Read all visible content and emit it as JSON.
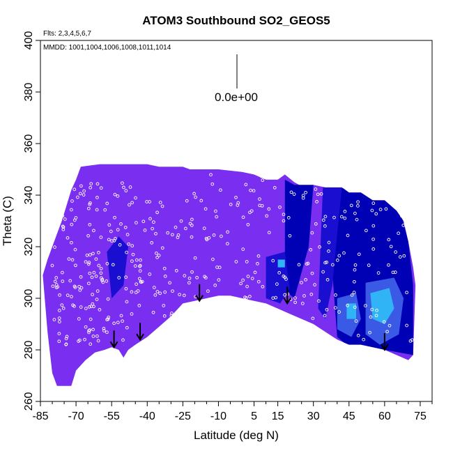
{
  "chart_data": {
    "type": "heatmap",
    "title": "ATOM3 Southbound SO2_GEOS5",
    "flights_label": "Flts: 2,3,4,5,6,7",
    "dates_label": "MMDD: 1001,1004,1006,1008,1011,1014",
    "xlabel": "Latitude (deg N)",
    "ylabel": "Theta (C)",
    "xlim": [
      -85,
      80
    ],
    "ylim": [
      260,
      400
    ],
    "x_ticks": [
      -85,
      -70,
      -55,
      -40,
      -25,
      -10,
      5,
      15,
      30,
      45,
      60,
      75
    ],
    "y_ticks": [
      260,
      280,
      300,
      320,
      340,
      360,
      380,
      400
    ],
    "scale_label": "0.0e+00",
    "colors": {
      "background_field": "#7a2ff0",
      "dark_blue": "#1a0fd0",
      "navy": "#0000b4",
      "mid_blue": "#3a5ae6",
      "light_blue": "#30b4f5",
      "points": "#ffffff",
      "arrows": "#000000"
    },
    "upper_boundary": [
      [
        -84,
        309
      ],
      [
        -82,
        315
      ],
      [
        -80,
        320
      ],
      [
        -78,
        325
      ],
      [
        -76,
        330
      ],
      [
        -74,
        336
      ],
      [
        -72,
        342
      ],
      [
        -70,
        346
      ],
      [
        -68,
        351
      ],
      [
        -60,
        352
      ],
      [
        -50,
        352
      ],
      [
        -45,
        352
      ],
      [
        -40,
        352
      ],
      [
        -35,
        351
      ],
      [
        -25,
        351
      ],
      [
        -22,
        350
      ],
      [
        -10,
        350
      ],
      [
        0,
        349
      ],
      [
        5,
        348
      ],
      [
        10,
        346
      ],
      [
        15,
        346
      ],
      [
        18,
        348
      ],
      [
        22,
        345
      ],
      [
        24,
        344
      ],
      [
        30,
        344
      ],
      [
        35,
        343
      ],
      [
        42,
        343
      ],
      [
        45,
        341
      ],
      [
        50,
        341
      ],
      [
        55,
        338
      ],
      [
        60,
        338
      ],
      [
        65,
        334
      ],
      [
        68,
        330
      ],
      [
        70,
        322
      ],
      [
        72,
        312
      ],
      [
        73,
        305
      ]
    ],
    "lower_boundary": [
      [
        -82,
        287
      ],
      [
        -80,
        271
      ],
      [
        -78,
        266
      ],
      [
        -72,
        266
      ],
      [
        -70,
        272
      ],
      [
        -66,
        276
      ],
      [
        -62,
        279
      ],
      [
        -58,
        280
      ],
      [
        -55,
        281
      ],
      [
        -52,
        280
      ],
      [
        -50,
        277
      ],
      [
        -48,
        280
      ],
      [
        -45,
        282
      ],
      [
        -40,
        285
      ],
      [
        -35,
        289
      ],
      [
        -30,
        293
      ],
      [
        -25,
        298
      ],
      [
        -20,
        299
      ],
      [
        -15,
        300
      ],
      [
        -10,
        301
      ],
      [
        -5,
        301
      ],
      [
        0,
        300
      ],
      [
        5,
        299
      ],
      [
        10,
        298
      ],
      [
        15,
        296
      ],
      [
        20,
        294
      ],
      [
        25,
        292
      ],
      [
        30,
        290
      ],
      [
        35,
        287
      ],
      [
        40,
        284
      ],
      [
        45,
        282
      ],
      [
        50,
        282
      ],
      [
        55,
        281
      ],
      [
        60,
        280
      ],
      [
        65,
        278
      ],
      [
        70,
        276
      ],
      [
        72,
        278
      ]
    ],
    "blue_regions": [
      {
        "color": "navy",
        "polygon": [
          [
            18,
            346
          ],
          [
            22,
            344
          ],
          [
            30,
            344
          ],
          [
            28,
            320
          ],
          [
            22,
            300
          ],
          [
            18,
            303
          ]
        ]
      },
      {
        "color": "navy",
        "polygon": [
          [
            40,
            343
          ],
          [
            55,
            341
          ],
          [
            66,
            336
          ],
          [
            70,
            322
          ],
          [
            72,
            305
          ],
          [
            72,
            278
          ],
          [
            60,
            280
          ],
          [
            50,
            282
          ],
          [
            44,
            282
          ],
          [
            40,
            285
          ],
          [
            38,
            310
          ],
          [
            40,
            328
          ]
        ]
      },
      {
        "color": "dark_blue",
        "polygon": [
          [
            34,
            343
          ],
          [
            42,
            343
          ],
          [
            40,
            325
          ],
          [
            38,
            305
          ],
          [
            35,
            292
          ],
          [
            32,
            296
          ],
          [
            33,
            320
          ]
        ]
      },
      {
        "color": "dark_blue",
        "polygon": [
          [
            10,
            316
          ],
          [
            18,
            318
          ],
          [
            20,
            304
          ],
          [
            16,
            298
          ],
          [
            10,
            300
          ]
        ]
      },
      {
        "color": "dark_blue",
        "polygon": [
          [
            -57,
            318
          ],
          [
            -52,
            324
          ],
          [
            -48,
            320
          ],
          [
            -50,
            305
          ],
          [
            -55,
            300
          ]
        ]
      },
      {
        "color": "mid_blue",
        "polygon": [
          [
            40,
            300
          ],
          [
            48,
            302
          ],
          [
            50,
            292
          ],
          [
            46,
            285
          ],
          [
            40,
            288
          ]
        ]
      },
      {
        "color": "mid_blue",
        "polygon": [
          [
            52,
            306
          ],
          [
            64,
            308
          ],
          [
            68,
            300
          ],
          [
            66,
            286
          ],
          [
            58,
            282
          ],
          [
            52,
            286
          ]
        ]
      },
      {
        "color": "light_blue",
        "polygon": [
          [
            54,
            302
          ],
          [
            62,
            304
          ],
          [
            64,
            296
          ],
          [
            60,
            290
          ],
          [
            55,
            292
          ]
        ]
      },
      {
        "color": "light_blue",
        "polygon": [
          [
            44,
            298
          ],
          [
            48,
            298
          ],
          [
            48,
            292
          ],
          [
            44,
            292
          ]
        ]
      },
      {
        "color": "light_blue",
        "polygon": [
          [
            15,
            315
          ],
          [
            18,
            315
          ],
          [
            18,
            312
          ],
          [
            15,
            312
          ]
        ]
      }
    ],
    "arrows": [
      {
        "lat": -54,
        "theta": 281
      },
      {
        "lat": -43,
        "theta": 284
      },
      {
        "lat": -18,
        "theta": 299
      },
      {
        "lat": 19,
        "theta": 298
      },
      {
        "lat": 60,
        "theta": 280
      }
    ],
    "flight_tracks": [
      {
        "lat_start": -80,
        "lat_end": -45,
        "theta_min": 282,
        "theta_max": 345,
        "count": 170
      },
      {
        "lat_start": -45,
        "lat_end": -25,
        "theta_min": 290,
        "theta_max": 340,
        "count": 55
      },
      {
        "lat_start": -25,
        "lat_end": 15,
        "theta_min": 300,
        "theta_max": 348,
        "count": 80
      },
      {
        "lat_start": 15,
        "lat_end": 40,
        "theta_min": 292,
        "theta_max": 344,
        "count": 55
      },
      {
        "lat_start": 40,
        "lat_end": 72,
        "theta_min": 283,
        "theta_max": 338,
        "count": 60
      }
    ]
  }
}
